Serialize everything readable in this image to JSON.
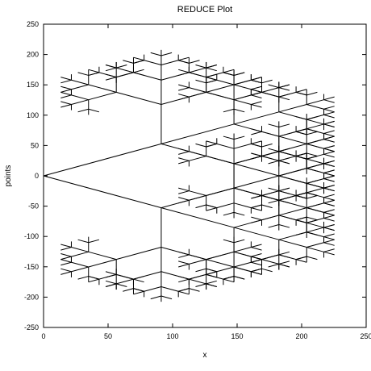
{
  "chart_data": {
    "type": "line",
    "title": "REDUCE Plot",
    "xlabel": "x",
    "ylabel": "points",
    "xlim": [
      0,
      250
    ],
    "ylim": [
      -250,
      250
    ],
    "x_ticks": [
      0,
      50,
      100,
      150,
      200,
      250
    ],
    "y_ticks": [
      -250,
      -200,
      -150,
      -100,
      -50,
      0,
      50,
      100,
      150,
      200,
      250
    ],
    "grid": false,
    "legend": "none",
    "line_color": "#000000",
    "tree": {
      "root": [
        0,
        0
      ],
      "trunk_angle_deg": 30,
      "initial_length": 105.3,
      "length_ratio": 0.618,
      "branch_angles_deg": [
        -60,
        0,
        60
      ],
      "depth": 6
    }
  }
}
